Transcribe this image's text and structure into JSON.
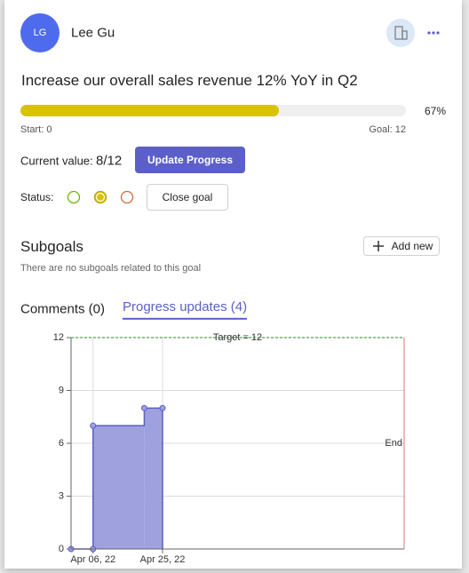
{
  "header": {
    "initials": "LG",
    "name": "Lee Gu"
  },
  "goal": {
    "title": "Increase our overall sales revenue 12% YoY in Q2",
    "progress": {
      "value": 67,
      "value_label": "67%"
    },
    "start_label": "Start: 0",
    "goal_label": "Goal: 12",
    "current_value_label": "Current value:",
    "current_value": "8/12",
    "update_button": "Update Progress",
    "status_label": "Status:",
    "close_button": "Close goal"
  },
  "subgoals": {
    "title": "Subgoals",
    "add_button": "Add new",
    "empty_message": "There are no subgoals related to this goal"
  },
  "tabs": [
    "Comments (0)",
    "Progress updates (4)"
  ],
  "chart_data": {
    "type": "step-area",
    "x": [
      "2022-03-31",
      "2022-04-06",
      "2022-04-06",
      "2022-04-20",
      "2022-04-25"
    ],
    "values": [
      0,
      0,
      7,
      8,
      8
    ],
    "color": "#5b5fc7",
    "fill_color": "#9fa1de",
    "xlim": [
      "2022-03-31",
      "2022-06-30"
    ],
    "xticks": [
      {
        "value": "2022-04-06",
        "label": "Apr 06, 22"
      },
      {
        "value": "2022-04-25",
        "label": "Apr 25, 22"
      }
    ],
    "ylim": [
      0,
      12
    ],
    "yticks": [
      0,
      3,
      6,
      9,
      12
    ],
    "grid": true,
    "target": {
      "value": 12,
      "label": "Target = 12",
      "color": "#5aa454"
    },
    "end": {
      "x": "2022-06-30",
      "label": "End",
      "color": "#e07070"
    }
  }
}
